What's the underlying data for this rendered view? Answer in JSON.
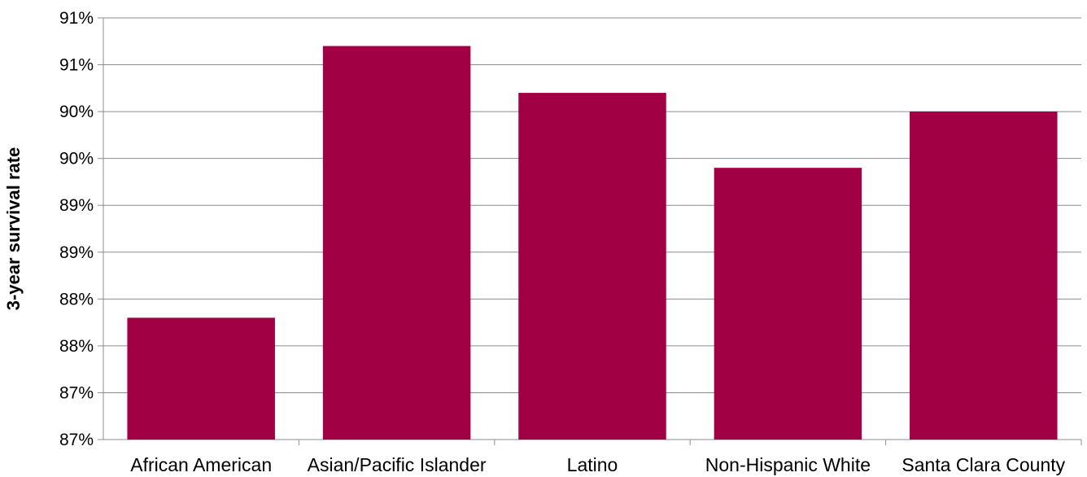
{
  "chart_data": {
    "type": "bar",
    "title": "",
    "xlabel": "",
    "ylabel": "3-year survival rate",
    "categories": [
      "African American",
      "Asian/Pacific Islander",
      "Latino",
      "Non-Hispanic White",
      "Santa Clara County"
    ],
    "values": [
      87.8,
      90.7,
      90.2,
      89.4,
      90.0
    ],
    "ylim": [
      86.5,
      91.0
    ],
    "y_ticks": [
      86.5,
      87.0,
      87.5,
      88.0,
      88.5,
      89.0,
      89.5,
      90.0,
      90.5,
      91.0
    ],
    "y_tick_labels": [
      "87%",
      "87%",
      "88%",
      "88%",
      "89%",
      "89%",
      "90%",
      "90%",
      "91%",
      "91%"
    ],
    "grid": true,
    "legend": "none",
    "bar_color": "#A10044",
    "grid_color": "#8C8C8C"
  }
}
